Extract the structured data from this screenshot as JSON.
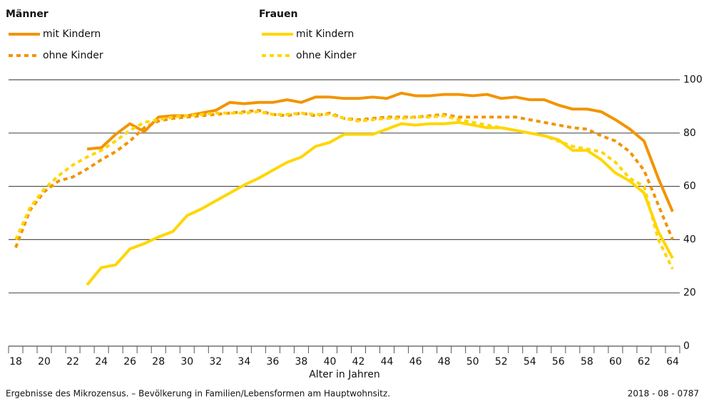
{
  "chart_data": {
    "type": "line",
    "legend_groups": [
      "Männer",
      "Frauen"
    ],
    "xlabel": "Alter in Jahren",
    "footnote": "Ergebnisse des Mikrozensus. – Bevölkerung in Familien/Lebensformen am Hauptwohnsitz.",
    "code": "2018 - 08 - 0787",
    "x": [
      18,
      19,
      20,
      21,
      22,
      23,
      24,
      25,
      26,
      27,
      28,
      29,
      30,
      31,
      32,
      33,
      34,
      35,
      36,
      37,
      38,
      39,
      40,
      41,
      42,
      43,
      44,
      45,
      46,
      47,
      48,
      49,
      50,
      51,
      52,
      53,
      54,
      55,
      56,
      57,
      58,
      59,
      60,
      61,
      62,
      63,
      64
    ],
    "xlim": [
      17.5,
      64.5
    ],
    "xticks": [
      18,
      20,
      22,
      24,
      26,
      28,
      30,
      32,
      34,
      36,
      38,
      40,
      42,
      44,
      46,
      48,
      50,
      52,
      54,
      56,
      58,
      60,
      62,
      64
    ],
    "ylim": [
      0,
      100
    ],
    "yticks": [
      0,
      20,
      40,
      60,
      80,
      100
    ],
    "grid": true,
    "series": [
      {
        "name": "mit Kindern",
        "color": "#f29400",
        "dashed": false,
        "values": [
          null,
          null,
          null,
          null,
          null,
          74,
          74.5,
          79.5,
          83.5,
          80.5,
          86,
          86.5,
          86.5,
          87.5,
          88.5,
          91.5,
          91,
          91.5,
          91.5,
          92.5,
          91.5,
          93.5,
          93.5,
          93,
          93,
          93.5,
          93,
          95,
          94,
          94,
          94.5,
          94.5,
          94,
          94.5,
          93,
          93.5,
          92.5,
          92.5,
          90.5,
          89,
          89,
          88,
          85,
          81.5,
          77,
          63,
          50.5
        ]
      },
      {
        "name": "ohne Kinder",
        "color": "#f29400",
        "dashed": true,
        "values": [
          37,
          51,
          58,
          62,
          63.5,
          66.5,
          70,
          73,
          77,
          82,
          84.5,
          85.5,
          86,
          86.5,
          87,
          87.5,
          88,
          88.5,
          87,
          86.5,
          87.5,
          86.5,
          87.5,
          85.5,
          85,
          85.5,
          86,
          86,
          86,
          86.5,
          87,
          86,
          86,
          86,
          86,
          86,
          85,
          84,
          83,
          82,
          81.5,
          79,
          77,
          73,
          66,
          53,
          40
        ]
      },
      {
        "name": "mit Kindern",
        "color": "#ffd600",
        "dashed": false,
        "values": [
          null,
          null,
          null,
          null,
          null,
          23,
          29.5,
          30.5,
          36.5,
          38.5,
          41,
          43,
          49,
          51.5,
          54.5,
          57.5,
          60.5,
          63,
          66,
          69,
          71,
          75,
          76.5,
          79.5,
          79.5,
          79.5,
          81.5,
          83.5,
          83,
          83.5,
          83.5,
          84,
          83,
          82,
          82,
          81,
          80,
          79,
          77.5,
          73.5,
          73.5,
          70,
          65,
          62,
          57.5,
          43,
          33
        ]
      },
      {
        "name": "ohne Kinder",
        "color": "#ffd600",
        "dashed": true,
        "values": [
          40,
          52,
          59,
          64,
          68,
          71,
          73.5,
          77,
          81,
          84,
          85,
          86,
          86.5,
          87,
          87.5,
          87.5,
          87.5,
          88,
          87,
          87,
          87.5,
          87,
          87,
          85.5,
          84.5,
          85,
          85.5,
          85.5,
          86,
          86,
          86.5,
          85,
          84,
          83,
          82,
          81,
          80,
          79,
          77,
          75,
          74,
          73,
          69,
          63,
          60,
          40,
          29
        ]
      }
    ]
  }
}
